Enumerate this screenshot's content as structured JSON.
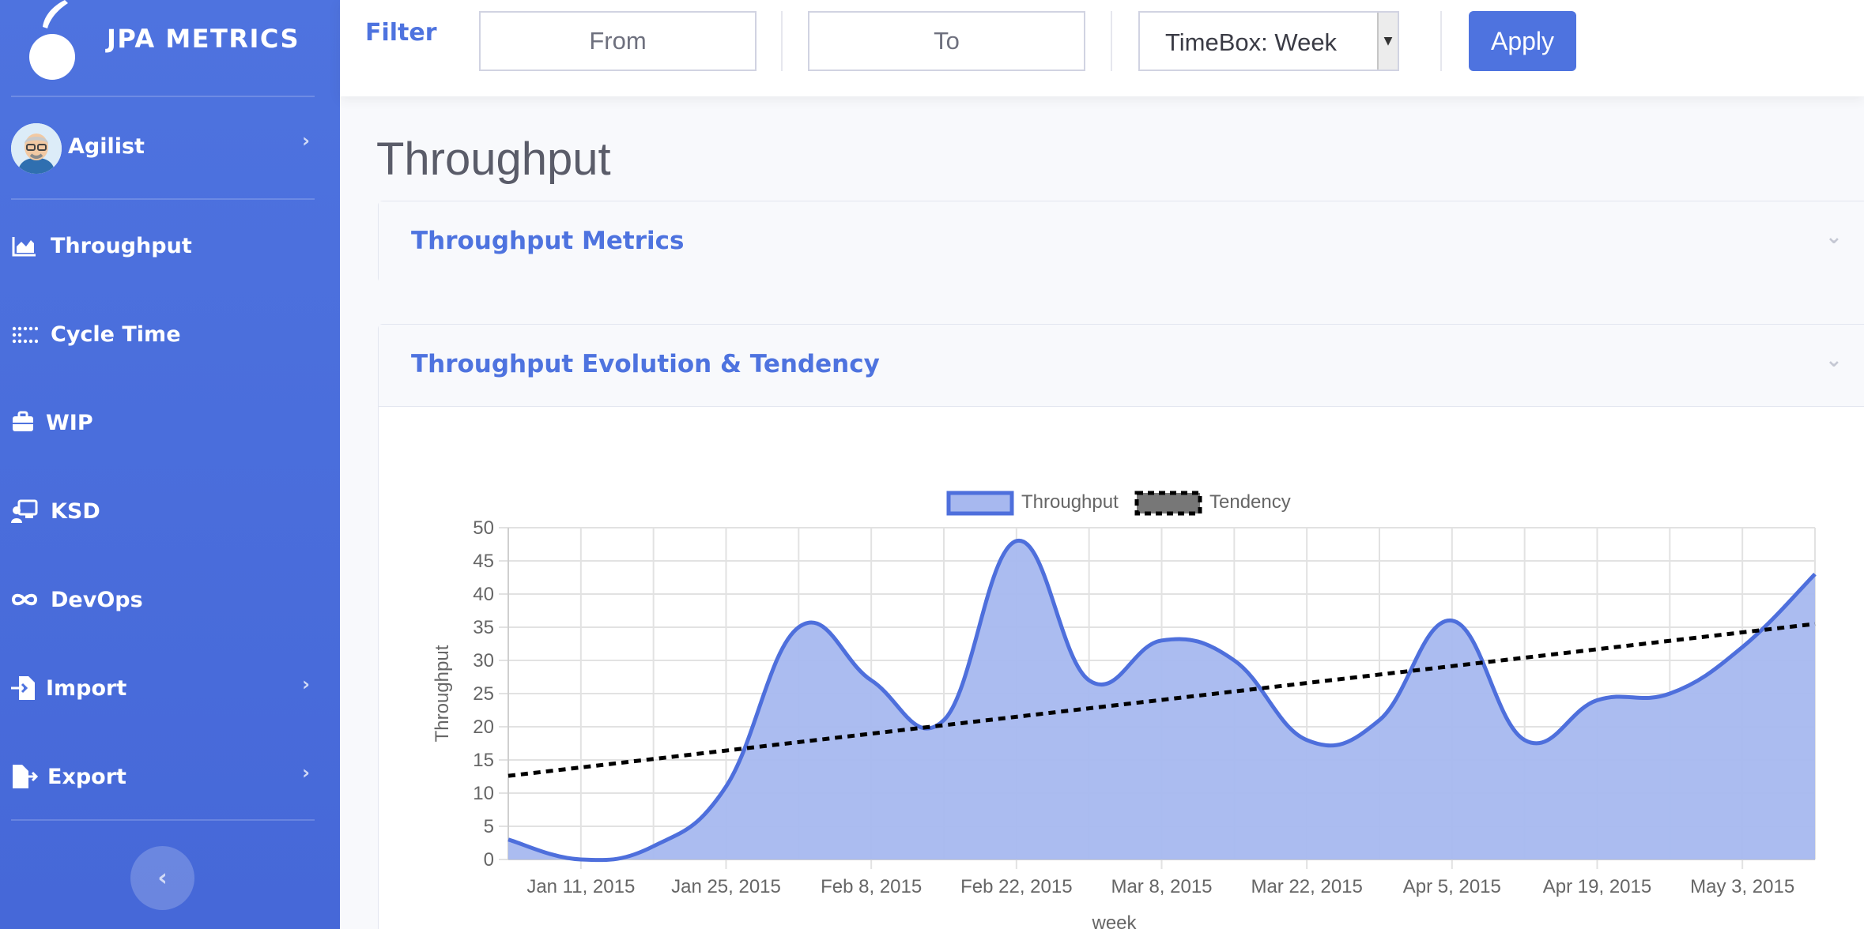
{
  "sidebar": {
    "brand": "JPA METRICS",
    "user": {
      "name": "Agilist"
    },
    "items": [
      {
        "label": "Throughput",
        "icon": "area-chart-icon"
      },
      {
        "label": "Cycle Time",
        "icon": "dots-grid-icon"
      },
      {
        "label": "WIP",
        "icon": "briefcase-icon"
      },
      {
        "label": "KSD",
        "icon": "chalkboard-teacher-icon"
      },
      {
        "label": "DevOps",
        "icon": "infinity-icon"
      },
      {
        "label": "Import",
        "icon": "file-import-icon"
      },
      {
        "label": "Export",
        "icon": "file-export-icon"
      }
    ],
    "toggle_glyph": "‹"
  },
  "topbar": {
    "filter_label": "Filter",
    "from_placeholder": "From",
    "to_placeholder": "To",
    "timebox_value": "TimeBox: Week",
    "apply_label": "Apply"
  },
  "page": {
    "title": "Throughput",
    "cards": [
      {
        "title": "Throughput Metrics"
      },
      {
        "title": "Throughput Evolution & Tendency"
      }
    ]
  },
  "colors": {
    "primary": "#4e73df",
    "area_fill": "#a7b8ef",
    "line": "#4e6fdc",
    "tendency": "#000000"
  },
  "chart_data": {
    "type": "area",
    "x_labels": [
      "Jan 11, 2015",
      "Jan 25, 2015",
      "Feb 8, 2015",
      "Feb 22, 2015",
      "Mar 8, 2015",
      "Mar 22, 2015",
      "Apr 5, 2015",
      "Apr 19, 2015",
      "May 3, 2015"
    ],
    "x": [
      "Jan 4",
      "Jan 11",
      "Jan 18",
      "Jan 25",
      "Feb 1",
      "Feb 8",
      "Feb 15",
      "Feb 22",
      "Mar 1",
      "Mar 8",
      "Mar 15",
      "Mar 22",
      "Mar 29",
      "Apr 5",
      "Apr 12",
      "Apr 19",
      "Apr 26",
      "May 3",
      "May 10"
    ],
    "series": [
      {
        "name": "Throughput",
        "values": [
          3,
          0,
          2,
          11,
          35,
          27,
          21,
          48,
          27,
          33,
          30,
          18,
          21,
          36,
          18,
          24,
          25,
          32,
          43
        ]
      },
      {
        "name": "Tendency",
        "values": [
          12.6,
          13.8,
          15.1,
          16.3,
          17.6,
          18.9,
          20.1,
          21.4,
          22.7,
          23.9,
          25.2,
          26.5,
          27.8,
          29.0,
          30.3,
          31.6,
          32.8,
          34.1,
          35.5
        ]
      }
    ],
    "ylabel": "Throughput",
    "xlabel": "week",
    "ylim": [
      0,
      50
    ],
    "yticks": [
      0,
      5,
      10,
      15,
      20,
      25,
      30,
      35,
      40,
      45,
      50
    ],
    "legend": "top-center"
  }
}
